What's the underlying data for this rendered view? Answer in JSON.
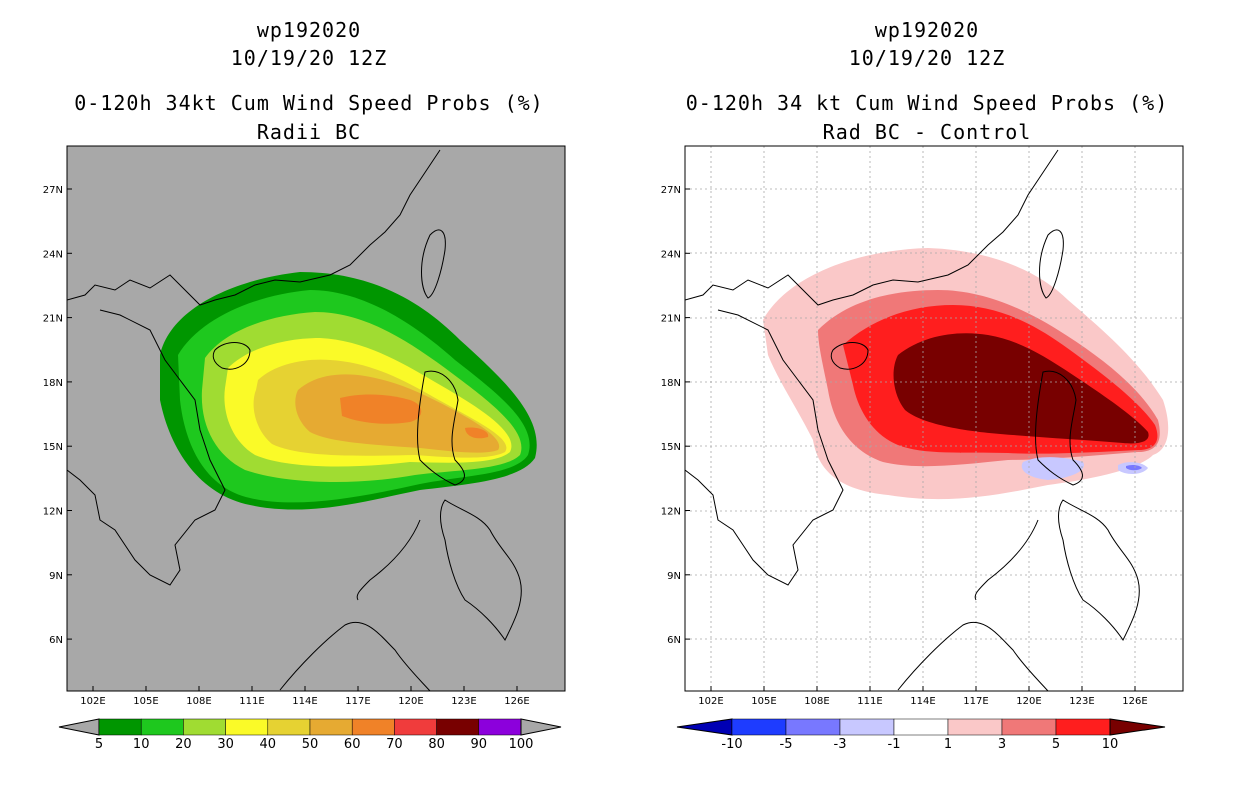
{
  "left": {
    "title_line1": "wp192020",
    "title_line2": "10/19/20 12Z",
    "title_line3": "0-120h 34kt Cum Wind Speed Probs (%)",
    "title_line4": "Radii BC",
    "background_color": "#a8a8a8",
    "colorbar": {
      "colors": [
        "#009600",
        "#1ec81e",
        "#a0dc32",
        "#fafa28",
        "#e6d232",
        "#e6aa32",
        "#f08228",
        "#f03c3c",
        "#780000",
        "#8c00dc"
      ],
      "labels": [
        "5",
        "10",
        "20",
        "30",
        "40",
        "50",
        "60",
        "70",
        "80",
        "90",
        "100"
      ]
    }
  },
  "right": {
    "title_line1": "wp192020",
    "title_line2": "10/19/20 12Z",
    "title_line3": "0-120h 34 kt Cum Wind Speed Probs (%)",
    "title_line4": "Rad BC - Control",
    "background_color": "#ffffff",
    "colorbar": {
      "colors": [
        "#0000b4",
        "#1e3cff",
        "#7878ff",
        "#c8c8ff",
        "#ffffff",
        "#fac8c8",
        "#f07878",
        "#ff1e1e",
        "#780000"
      ],
      "labels": [
        "-10",
        "-5",
        "-3",
        "-1",
        "1",
        "3",
        "5",
        "10"
      ]
    }
  },
  "axes": {
    "lon_ticks": [
      "102E",
      "105E",
      "108E",
      "111E",
      "114E",
      "117E",
      "120E",
      "123E",
      "126E"
    ],
    "lat_ticks": [
      "27N",
      "24N",
      "21N",
      "18N",
      "15N",
      "12N",
      "9N",
      "6N"
    ]
  }
}
